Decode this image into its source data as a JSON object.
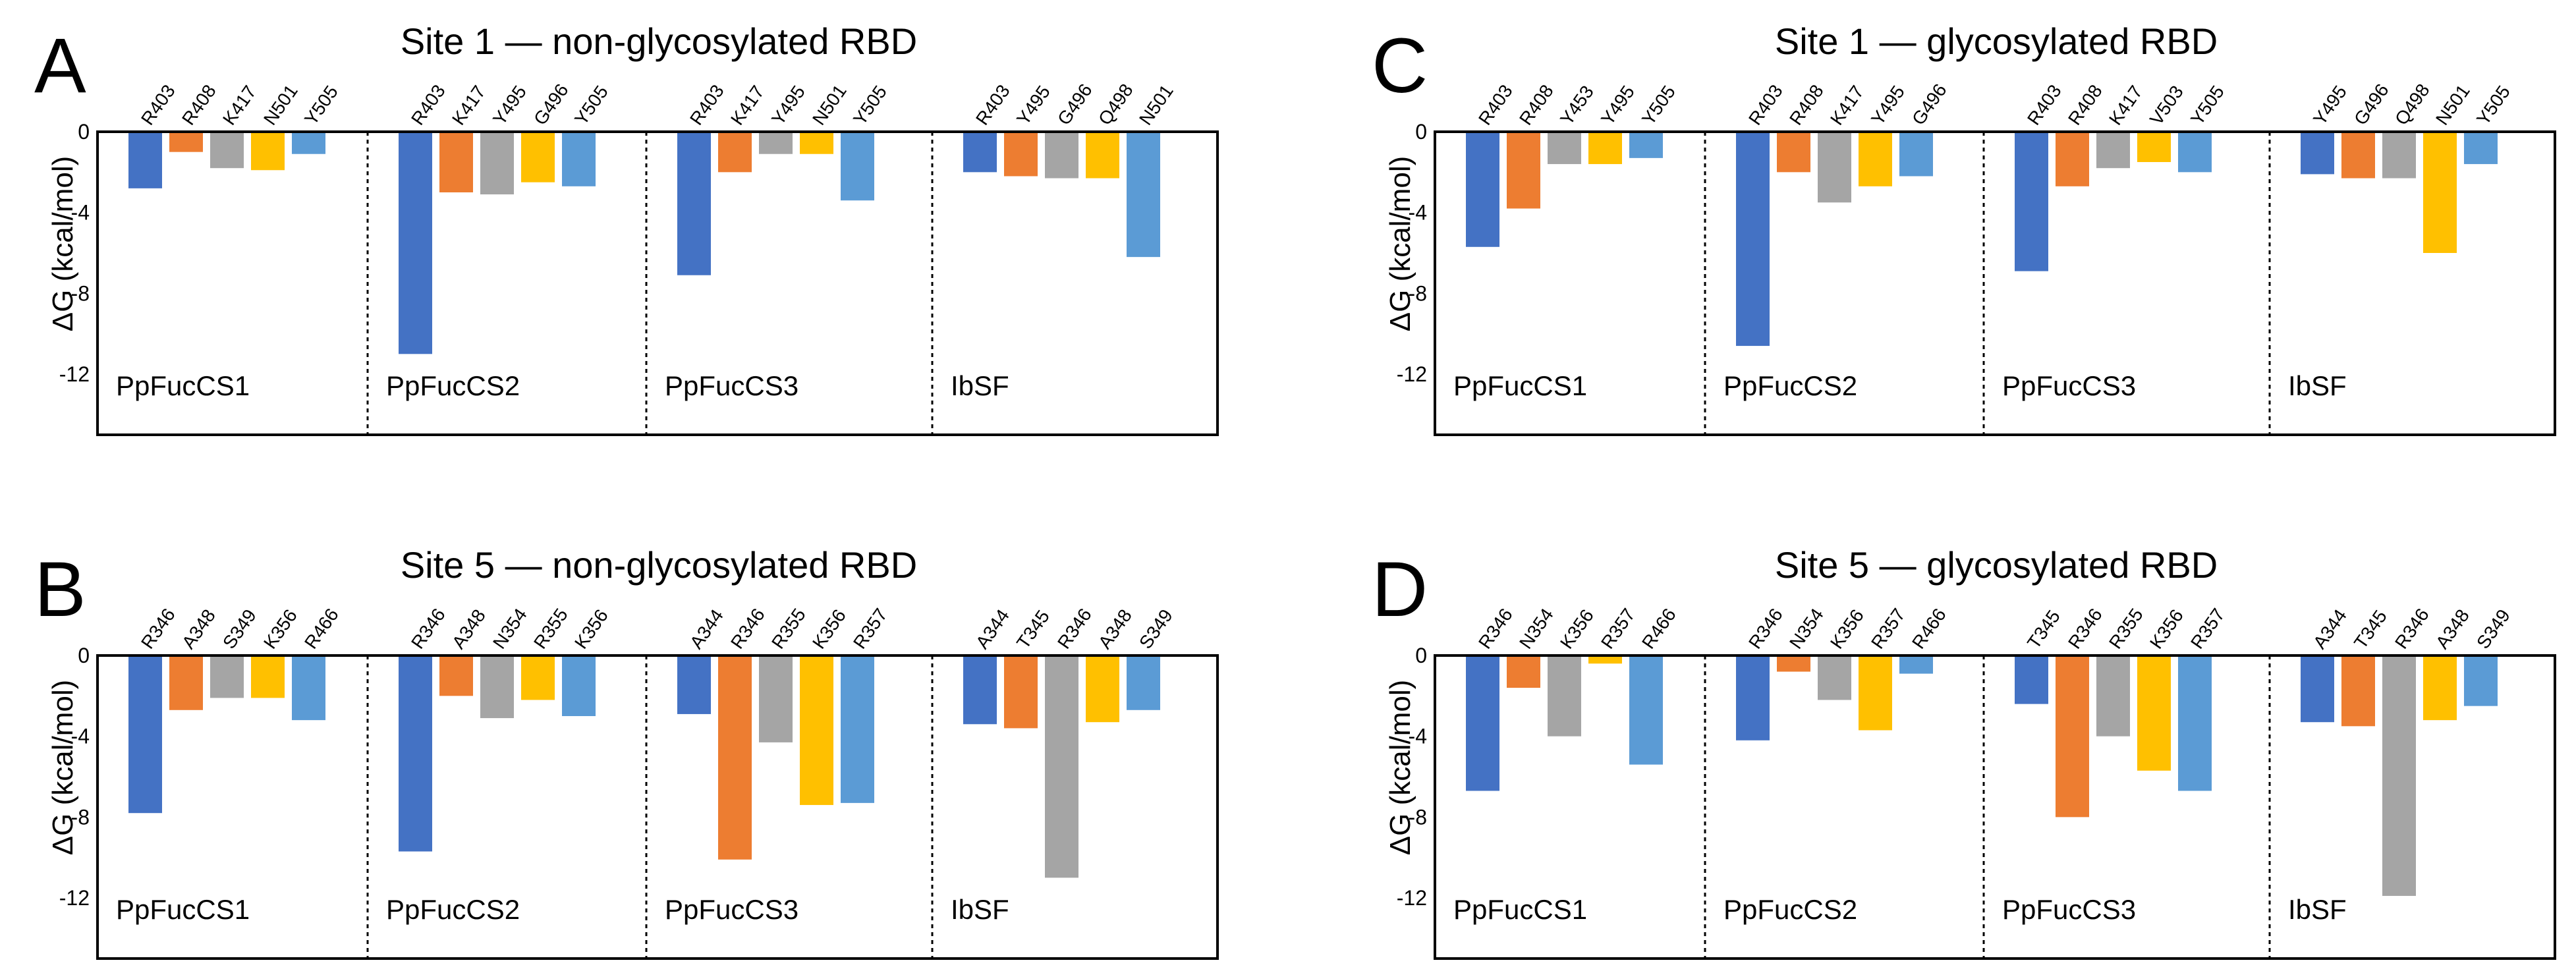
{
  "colors": [
    "#4472c4",
    "#ed7d31",
    "#a5a5a5",
    "#ffc000",
    "#5b9bd5"
  ],
  "chart_data": [
    {
      "type": "bar",
      "letter": "A",
      "title": "Site 1 — non-glycosylated RBD",
      "ylabel": "ΔG (kcal/mol)",
      "ylim": [
        -15,
        0
      ],
      "yticks": [
        "0",
        "-4",
        "-8",
        "-12"
      ],
      "groups": [
        {
          "name": "PpFucCS1",
          "residues": [
            "R403",
            "R408",
            "K417",
            "N501",
            "Y505"
          ],
          "values": [
            -2.8,
            -1.0,
            -1.8,
            -1.9,
            -1.1
          ]
        },
        {
          "name": "PpFucCS2",
          "residues": [
            "R403",
            "K417",
            "Y495",
            "G496",
            "Y505"
          ],
          "values": [
            -11.0,
            -3.0,
            -3.1,
            -2.5,
            -2.7
          ]
        },
        {
          "name": "PpFucCS3",
          "residues": [
            "R403",
            "K417",
            "Y495",
            "N501",
            "Y505"
          ],
          "values": [
            -7.1,
            -2.0,
            -1.1,
            -1.1,
            -3.4
          ]
        },
        {
          "name": "IbSF",
          "residues": [
            "R403",
            "Y495",
            "G496",
            "Q498",
            "N501"
          ],
          "values": [
            -2.0,
            -2.2,
            -2.3,
            -2.3,
            -6.2
          ]
        }
      ]
    },
    {
      "type": "bar",
      "letter": "B",
      "title": "Site 5 — non-glycosylated RBD",
      "ylabel": "ΔG (kcal/mol)",
      "ylim": [
        -15,
        0
      ],
      "yticks": [
        "0",
        "-4",
        "-8",
        "-12"
      ],
      "groups": [
        {
          "name": "PpFucCS1",
          "residues": [
            "R346",
            "A348",
            "S349",
            "K356",
            "R466"
          ],
          "values": [
            -7.8,
            -2.7,
            -2.1,
            -2.1,
            -3.2
          ]
        },
        {
          "name": "PpFucCS2",
          "residues": [
            "R346",
            "A348",
            "N354",
            "R355",
            "K356"
          ],
          "values": [
            -9.7,
            -2.0,
            -3.1,
            -2.2,
            -3.0
          ]
        },
        {
          "name": "PpFucCS3",
          "residues": [
            "A344",
            "R346",
            "R355",
            "K356",
            "R357"
          ],
          "values": [
            -2.9,
            -10.1,
            -4.3,
            -7.4,
            -7.3
          ]
        },
        {
          "name": "IbSF",
          "residues": [
            "A344",
            "T345",
            "R346",
            "A348",
            "S349"
          ],
          "values": [
            -3.4,
            -3.6,
            -11.0,
            -3.3,
            -2.7
          ]
        }
      ]
    },
    {
      "type": "bar",
      "letter": "C",
      "title": "Site 1 — glycosylated RBD",
      "ylabel": "ΔG (kcal/mol)",
      "ylim": [
        -15,
        0
      ],
      "yticks": [
        "0",
        "-4",
        "-8",
        "-12"
      ],
      "groups": [
        {
          "name": "PpFucCS1",
          "residues": [
            "R403",
            "R408",
            "Y453",
            "Y495",
            "Y505"
          ],
          "values": [
            -5.7,
            -3.8,
            -1.6,
            -1.6,
            -1.3
          ]
        },
        {
          "name": "PpFucCS2",
          "residues": [
            "R403",
            "R408",
            "K417",
            "Y495",
            "G496"
          ],
          "values": [
            -10.6,
            -2.0,
            -3.5,
            -2.7,
            -2.2
          ]
        },
        {
          "name": "PpFucCS3",
          "residues": [
            "R403",
            "R408",
            "K417",
            "V503",
            "Y505"
          ],
          "values": [
            -6.9,
            -2.7,
            -1.8,
            -1.5,
            -2.0
          ]
        },
        {
          "name": "IbSF",
          "residues": [
            "Y495",
            "G496",
            "Q498",
            "N501",
            "Y505"
          ],
          "values": [
            -2.1,
            -2.3,
            -2.3,
            -6.0,
            -1.6
          ]
        }
      ]
    },
    {
      "type": "bar",
      "letter": "D",
      "title": "Site 5 — glycosylated RBD",
      "ylabel": "ΔG (kcal/mol)",
      "ylim": [
        -15,
        0
      ],
      "yticks": [
        "0",
        "-4",
        "-8",
        "-12"
      ],
      "groups": [
        {
          "name": "PpFucCS1",
          "residues": [
            "R346",
            "N354",
            "K356",
            "R357",
            "R466"
          ],
          "values": [
            -6.7,
            -1.6,
            -4.0,
            -0.4,
            -5.4
          ]
        },
        {
          "name": "PpFucCS2",
          "residues": [
            "R346",
            "N354",
            "K356",
            "R357",
            "R466"
          ],
          "values": [
            -4.2,
            -0.8,
            -2.2,
            -3.7,
            -0.9
          ]
        },
        {
          "name": "PpFucCS3",
          "residues": [
            "T345",
            "R346",
            "R355",
            "K356",
            "R357"
          ],
          "values": [
            -2.4,
            -8.0,
            -4.0,
            -5.7,
            -6.7
          ]
        },
        {
          "name": "IbSF",
          "residues": [
            "A344",
            "T345",
            "R346",
            "A348",
            "S349"
          ],
          "values": [
            -3.3,
            -3.5,
            -11.9,
            -3.2,
            -2.5
          ]
        }
      ]
    }
  ]
}
